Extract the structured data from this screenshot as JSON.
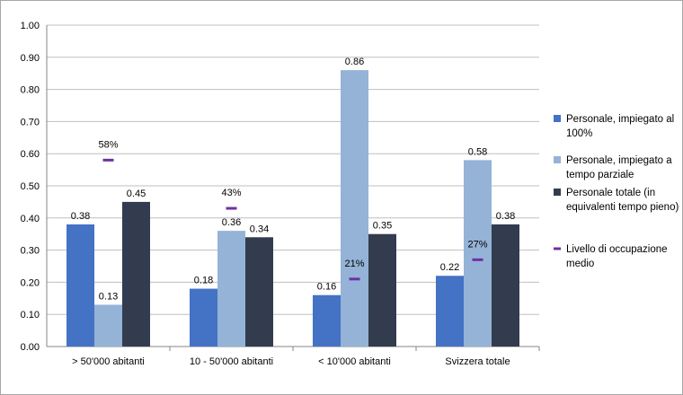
{
  "chart_data": {
    "type": "bar",
    "categories": [
      " > 50'000 abitanti",
      "10 - 50'000 abitanti",
      "< 10'000 abitanti",
      "Svizzera totale"
    ],
    "ylim": [
      0,
      1
    ],
    "y_ticks": [
      "0.00",
      "0.10",
      "0.20",
      "0.30",
      "0.40",
      "0.50",
      "0.60",
      "0.70",
      "0.80",
      "0.90",
      "1.00"
    ],
    "grid": true,
    "legend_position": "right",
    "series": [
      {
        "name": "Personale, impiegato al 100%",
        "color": "#4472c4",
        "values": [
          0.38,
          0.18,
          0.16,
          0.22
        ],
        "labels": [
          "0.38",
          "0.18",
          "0.16",
          "0.22"
        ]
      },
      {
        "name": "Personale, impiegato a tempo parziale",
        "color": "#95b3d7",
        "values": [
          0.13,
          0.36,
          0.86,
          0.58
        ],
        "labels": [
          "0.13",
          "0.36",
          "0.86",
          "0.58"
        ]
      },
      {
        "name": "Personale totale (in equivalenti tempo pieno)",
        "color": "#323c4e",
        "values": [
          0.45,
          0.34,
          0.35,
          0.38
        ],
        "labels": [
          "0.45",
          "0.34",
          "0.35",
          "0.38"
        ]
      },
      {
        "name": "Livello di occupazione medio",
        "type": "marker",
        "color": "#7030a0",
        "values": [
          0.58,
          0.43,
          0.21,
          0.27
        ],
        "labels": [
          "58%",
          "43%",
          "21%",
          "27%"
        ]
      }
    ],
    "legend": [
      [
        "Personale, impiegato al",
        "100%"
      ],
      [
        "Personale, impiegato a",
        "tempo parziale"
      ],
      [
        "Personale totale (in",
        "equivalenti tempo pieno)"
      ],
      [
        "Livello di occupazione",
        "medio"
      ]
    ]
  }
}
